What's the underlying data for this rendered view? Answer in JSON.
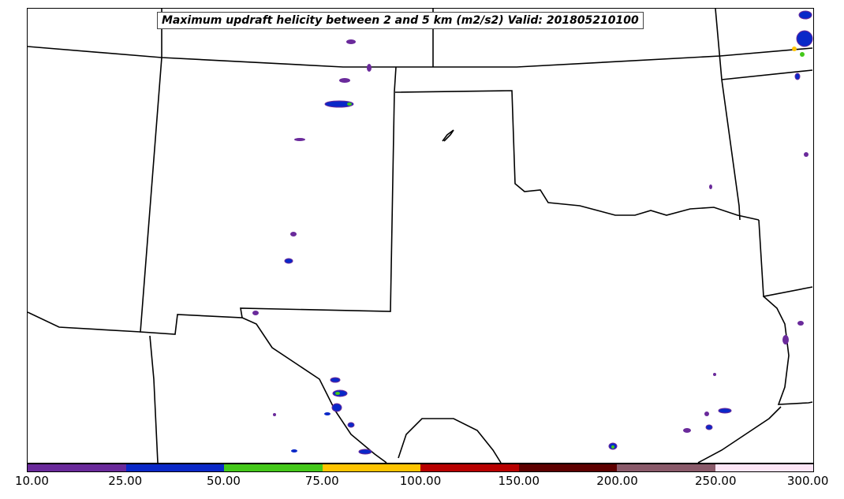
{
  "title": "Maximum updraft helicity between 2 and 5 km (m2/s2) Valid: 201805210100",
  "colorbar": {
    "ticks": [
      "10.00",
      "25.00",
      "50.00",
      "75.00",
      "100.00",
      "150.00",
      "200.00",
      "250.00",
      "300.00"
    ],
    "colors": [
      "#6a2a9b",
      "#0a28c8",
      "#44c81a",
      "#ffc400",
      "#b80000",
      "#5e0000",
      "#8a5a6a",
      "#fde6f6"
    ]
  },
  "map": {
    "region": "Southern US Plains",
    "border_color": "#000000"
  }
}
